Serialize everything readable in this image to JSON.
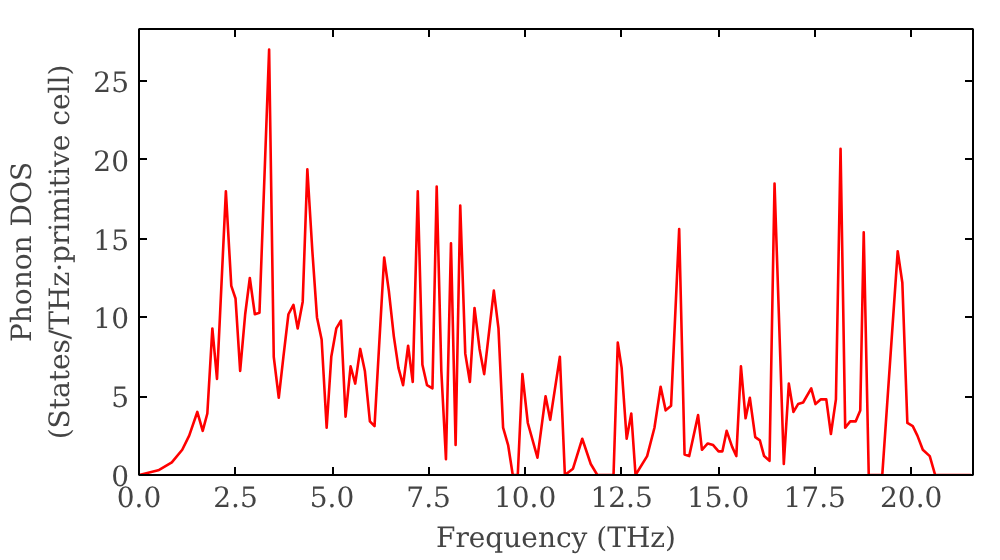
{
  "chart_data": {
    "type": "line",
    "xlabel": "Frequency (THz)",
    "ylabel": "Phonon DOS\n(States/THz·primitive cell)",
    "xlim": [
      0,
      21.6
    ],
    "ylim": [
      0,
      28.3
    ],
    "xticks": [
      {
        "value": 0,
        "label": "0.0"
      },
      {
        "value": 2.5,
        "label": "2.5"
      },
      {
        "value": 5,
        "label": "5.0"
      },
      {
        "value": 7.5,
        "label": "7.5"
      },
      {
        "value": 10,
        "label": "10.0"
      },
      {
        "value": 12.5,
        "label": "12.5"
      },
      {
        "value": 15,
        "label": "15.0"
      },
      {
        "value": 17.5,
        "label": "17.5"
      },
      {
        "value": 20,
        "label": "20.0"
      }
    ],
    "yticks": [
      0,
      5,
      10,
      15,
      20,
      25
    ],
    "grid": false,
    "marker": "none",
    "line_style": "solid",
    "series": [
      {
        "color": "#ff0000",
        "x": [
          0,
          0.5,
          0.85,
          1.12,
          1.3,
          1.51,
          1.65,
          1.77,
          1.9,
          2.02,
          2.25,
          2.39,
          2.5,
          2.62,
          2.75,
          2.87,
          3.0,
          3.12,
          3.37,
          3.49,
          3.62,
          3.74,
          3.87,
          4.0,
          4.11,
          4.24,
          4.36,
          4.49,
          4.61,
          4.73,
          4.86,
          4.98,
          5.11,
          5.23,
          5.35,
          5.48,
          5.6,
          5.73,
          5.85,
          5.98,
          6.1,
          6.35,
          6.47,
          6.6,
          6.72,
          6.84,
          6.97,
          7.09,
          7.22,
          7.34,
          7.46,
          7.6,
          7.71,
          7.83,
          7.95,
          8.08,
          8.2,
          8.32,
          8.45,
          8.57,
          8.69,
          8.82,
          8.94,
          9.19,
          9.31,
          9.43,
          9.56,
          9.68,
          9.81,
          9.93,
          10.07,
          10.32,
          10.53,
          10.65,
          10.9,
          11.03,
          11.24,
          11.48,
          11.7,
          11.87,
          12.29,
          12.4,
          12.5,
          12.63,
          12.75,
          12.86,
          13.16,
          13.35,
          13.51,
          13.64,
          13.78,
          13.99,
          14.13,
          14.25,
          14.48,
          14.58,
          14.73,
          14.87,
          15.01,
          15.11,
          15.22,
          15.36,
          15.47,
          15.59,
          15.71,
          15.82,
          15.96,
          16.08,
          16.19,
          16.33,
          16.46,
          16.7,
          16.83,
          16.95,
          17.07,
          17.2,
          17.41,
          17.52,
          17.66,
          17.8,
          17.92,
          18.05,
          18.17,
          18.29,
          18.42,
          18.56,
          18.68,
          18.77,
          18.9,
          19.25,
          19.65,
          19.77,
          19.9,
          20.04,
          20.16,
          20.3,
          20.48,
          20.62,
          21.55
        ],
        "values": [
          0,
          0.3,
          0.8,
          1.6,
          2.5,
          4.0,
          2.8,
          3.9,
          9.3,
          6.1,
          18.0,
          12.0,
          11.2,
          6.6,
          10.2,
          12.5,
          10.2,
          10.3,
          27.0,
          7.5,
          4.9,
          7.5,
          10.2,
          10.8,
          9.3,
          11.0,
          19.4,
          14.2,
          10.0,
          8.6,
          3.0,
          7.5,
          9.3,
          9.8,
          3.7,
          6.9,
          5.8,
          8.0,
          6.6,
          3.4,
          3.1,
          13.8,
          11.7,
          8.8,
          6.8,
          5.7,
          8.2,
          5.9,
          18.0,
          7.0,
          5.7,
          5.5,
          18.3,
          6.6,
          1.0,
          14.7,
          1.9,
          17.1,
          7.7,
          5.9,
          10.6,
          8.0,
          6.4,
          11.7,
          9.3,
          3.0,
          1.9,
          0,
          0,
          6.4,
          3.3,
          1.1,
          5.0,
          3.5,
          7.5,
          0,
          0.4,
          2.3,
          0.7,
          0,
          0,
          8.4,
          6.8,
          2.3,
          3.9,
          0,
          1.2,
          3.0,
          5.6,
          4.1,
          4.4,
          15.6,
          1.3,
          1.2,
          3.8,
          1.6,
          2.0,
          1.9,
          1.5,
          1.5,
          2.8,
          1.8,
          1.2,
          6.9,
          3.6,
          4.9,
          2.4,
          2.2,
          1.2,
          0.9,
          18.5,
          0.7,
          5.8,
          4.0,
          4.5,
          4.6,
          5.5,
          4.5,
          4.8,
          4.8,
          2.6,
          4.8,
          20.7,
          3.0,
          3.4,
          3.4,
          4.1,
          15.4,
          0,
          0,
          14.2,
          12.2,
          3.3,
          3.1,
          2.5,
          1.6,
          1.2,
          0,
          0
        ]
      }
    ]
  }
}
